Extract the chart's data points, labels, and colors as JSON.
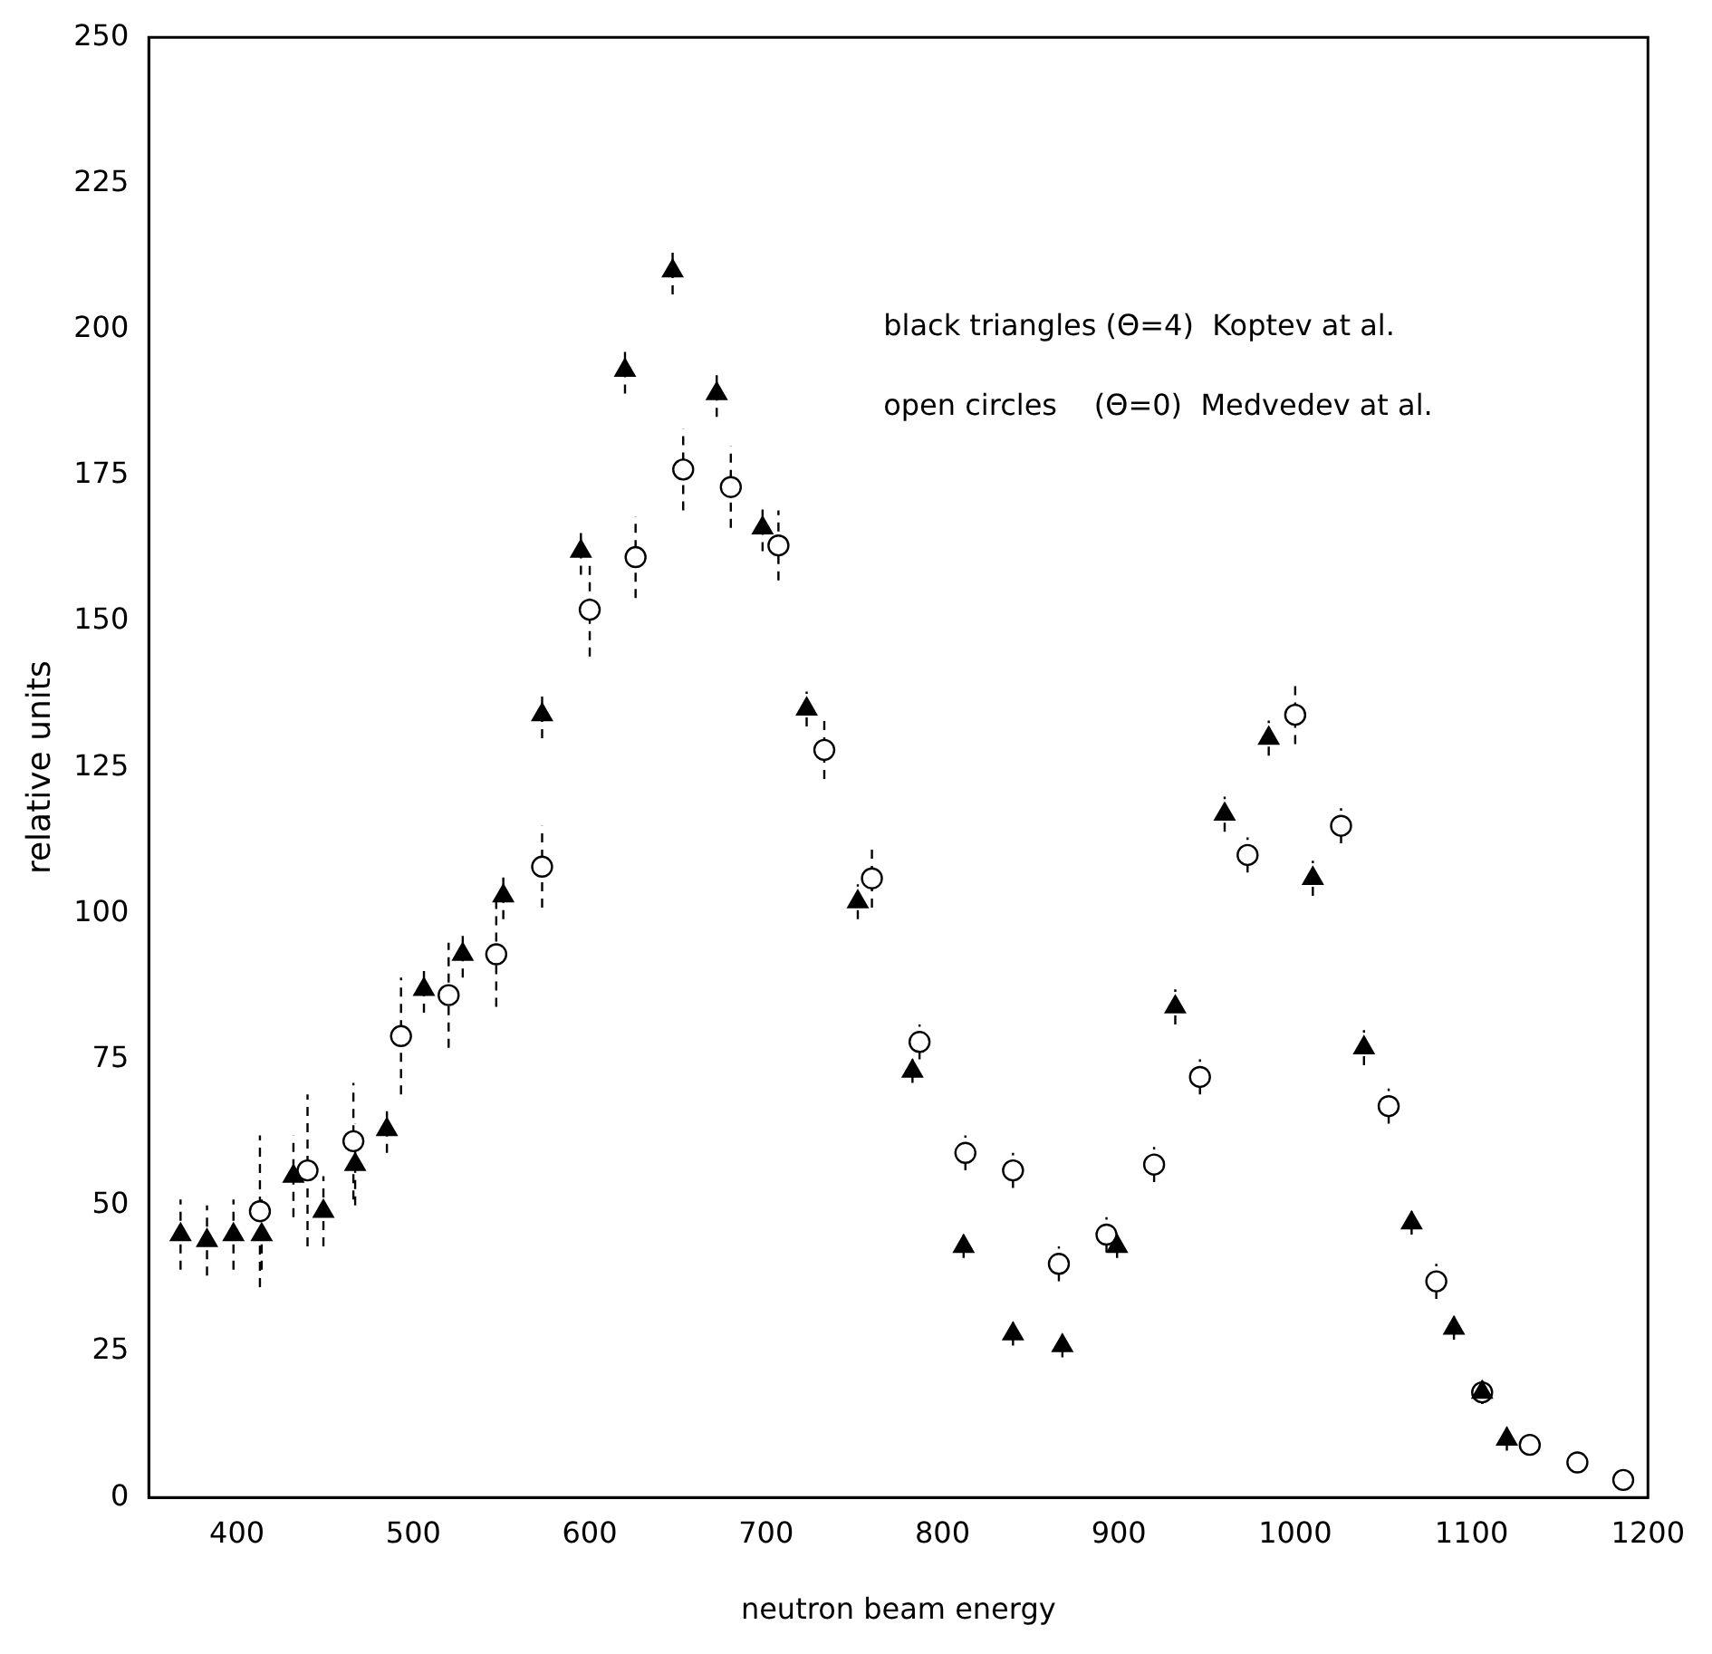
{
  "chart_data": {
    "type": "scatter",
    "xlabel": "neutron beam energy",
    "ylabel": "relative units",
    "xlim": [
      350,
      1200
    ],
    "ylim": [
      0,
      250
    ],
    "xticks": [
      400,
      500,
      600,
      700,
      800,
      900,
      1000,
      1100,
      1200
    ],
    "yticks": [
      0,
      25,
      50,
      75,
      100,
      125,
      150,
      175,
      200,
      225,
      250
    ],
    "grid": false,
    "legend": false,
    "annotations": [
      "black triangles (Θ=4)  Koptev at al.",
      "open circles    (Θ=0)  Medvedev at al."
    ],
    "series": [
      {
        "color": "#000000",
        "marker": "triangle",
        "x": [
          368,
          383,
          398,
          414,
          432,
          449,
          467,
          485,
          506,
          528,
          551,
          573,
          595,
          620,
          647,
          672,
          698,
          723,
          752,
          783,
          812,
          840,
          868,
          899,
          932,
          960,
          985,
          1010,
          1039,
          1066,
          1090,
          1106,
          1120
        ],
        "values": [
          45,
          44,
          45,
          45,
          55,
          49,
          57,
          63,
          87,
          93,
          103,
          134,
          162,
          193,
          210,
          189,
          166,
          135,
          102,
          73,
          43,
          28,
          26,
          43,
          84,
          117,
          130,
          106,
          77,
          47,
          29,
          18,
          10
        ],
        "errors": [
          6,
          6,
          6,
          6,
          7,
          6,
          7,
          4,
          4,
          4,
          4,
          4,
          4,
          4,
          4,
          4,
          4,
          3,
          3,
          2,
          2,
          2,
          2,
          2,
          3,
          3,
          3,
          3,
          3,
          2,
          2,
          2,
          2
        ]
      },
      {
        "color": "#000000",
        "marker": "circle",
        "x": [
          413,
          440,
          466,
          493,
          520,
          547,
          573,
          600,
          626,
          653,
          680,
          707,
          733,
          760,
          787,
          813,
          840,
          866,
          893,
          920,
          946,
          973,
          1000,
          1026,
          1053,
          1080,
          1106,
          1133,
          1160,
          1186
        ],
        "values": [
          49,
          56,
          61,
          79,
          86,
          93,
          108,
          152,
          161,
          176,
          173,
          163,
          128,
          106,
          78,
          59,
          56,
          40,
          45,
          57,
          72,
          110,
          134,
          115,
          67,
          37,
          18,
          9,
          6,
          3
        ],
        "errors": [
          13,
          13,
          10,
          10,
          9,
          9,
          7,
          8,
          7,
          7,
          7,
          6,
          5,
          5,
          3,
          3,
          3,
          3,
          3,
          3,
          3,
          3,
          5,
          3,
          3,
          3,
          2,
          null,
          null,
          null
        ]
      }
    ]
  }
}
